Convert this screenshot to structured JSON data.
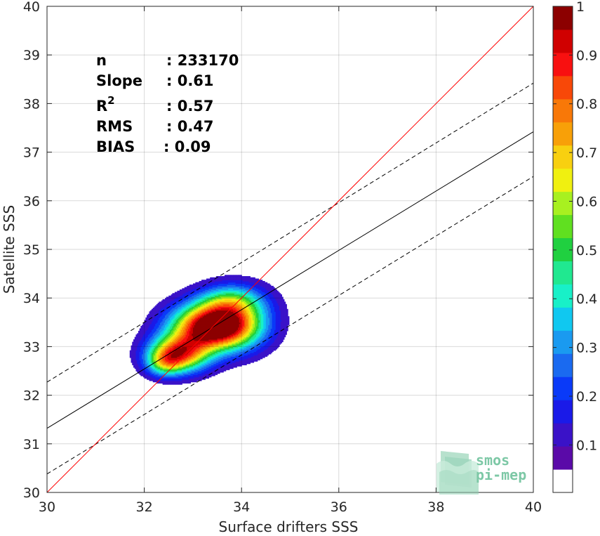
{
  "chart_data": {
    "type": "heatmap",
    "xlabel": "Surface drifters SSS",
    "ylabel": "Satellite SSS",
    "xlim": [
      30,
      40
    ],
    "ylim": [
      30,
      40
    ],
    "x_ticks": [
      30,
      32,
      34,
      36,
      38,
      40
    ],
    "y_ticks": [
      30,
      31,
      32,
      33,
      34,
      35,
      36,
      37,
      38,
      39,
      40
    ],
    "grid": true,
    "stats": {
      "n_label": "n",
      "n_value": ": 233170",
      "slope_label": "Slope",
      "slope_value": ": 0.61",
      "r2_label": "R",
      "r2_sup": "2",
      "r2_value": ": 0.57",
      "rms_label": "RMS",
      "rms_value": ": 0.47",
      "bias_label": "BIAS",
      "bias_value": ": 0.09"
    },
    "lines": {
      "identity": {
        "x": [
          30,
          40
        ],
        "y": [
          30,
          40
        ],
        "color": "#ff0000"
      },
      "regression": {
        "x": [
          30,
          40
        ],
        "y": [
          31.32,
          37.42
        ],
        "color": "#000000"
      },
      "upper_bound": {
        "x": [
          30,
          40
        ],
        "y": [
          32.27,
          38.42
        ],
        "color": "#000000",
        "dash": true
      },
      "lower_bound": {
        "x": [
          30,
          40
        ],
        "y": [
          30.38,
          36.5
        ],
        "color": "#000000",
        "dash": true
      }
    },
    "density": {
      "levels": [
        0.05,
        0.1,
        0.15,
        0.2,
        0.25,
        0.3,
        0.35,
        0.4,
        0.45,
        0.5,
        0.55,
        0.6,
        0.65,
        0.7,
        0.75,
        0.8,
        0.85,
        0.9,
        0.95
      ],
      "kernels": [
        {
          "cx": 33.35,
          "cy": 33.4,
          "sx": 0.55,
          "sy": 0.32,
          "amp": 1.0
        },
        {
          "cx": 32.7,
          "cy": 32.85,
          "sx": 0.42,
          "sy": 0.26,
          "amp": 0.78
        },
        {
          "cx": 33.9,
          "cy": 33.55,
          "sx": 0.48,
          "sy": 0.4,
          "amp": 0.4
        },
        {
          "cx": 32.4,
          "cy": 32.65,
          "sx": 0.25,
          "sy": 0.18,
          "amp": 0.3
        },
        {
          "cx": 33.75,
          "cy": 33.95,
          "sx": 0.45,
          "sy": 0.22,
          "amp": 0.25
        }
      ]
    },
    "colorbar": {
      "ticks": [
        0.1,
        0.2,
        0.3,
        0.4,
        0.5,
        0.6,
        0.7,
        0.8,
        0.9,
        1
      ],
      "tick_labels": [
        "0.1",
        "0.2",
        "0.3",
        "0.4",
        "0.5",
        "0.6",
        "0.7",
        "0.8",
        "0.9",
        "1"
      ],
      "colors": [
        "#ffffff",
        "#5a0aa8",
        "#3a12c8",
        "#1a1ae8",
        "#0a3af8",
        "#1a6af0",
        "#1a9af0",
        "#10c8f0",
        "#18f0c8",
        "#20e890",
        "#20d040",
        "#60e020",
        "#a8f020",
        "#f0f010",
        "#f8d010",
        "#f8a008",
        "#f87808",
        "#f84808",
        "#f81010",
        "#d00000",
        "#8c0000"
      ]
    }
  },
  "logo": {
    "line1": "smos",
    "line2": "pi-mep"
  }
}
